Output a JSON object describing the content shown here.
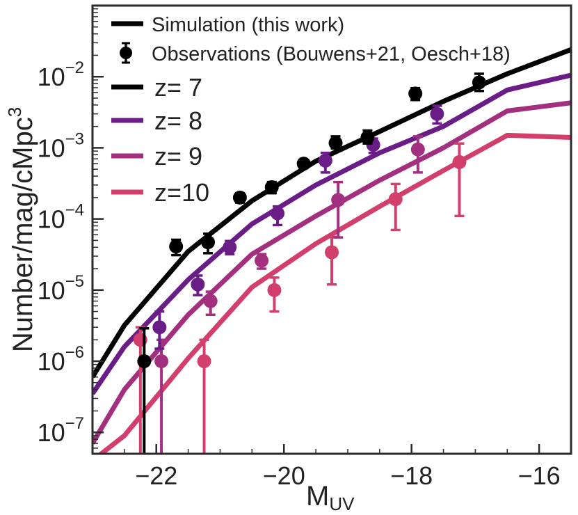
{
  "chart_data": {
    "type": "line",
    "xlabel_main": "M",
    "xlabel_sub": "UV",
    "ylabel_main": "Number/mag/cMpc",
    "ylabel_sup": "3",
    "x_scale": "linear",
    "y_scale": "log",
    "xlim": [
      -23.0,
      -15.5
    ],
    "ylim": [
      5e-08,
      0.1
    ],
    "x_ticks": [
      -22,
      -20,
      -18,
      -16
    ],
    "x_tick_labels": [
      "−22",
      "−20",
      "−18",
      "−16"
    ],
    "y_ticks": [
      {
        "value": 1e-07,
        "base": "10",
        "exp": "−7"
      },
      {
        "value": 1e-06,
        "base": "10",
        "exp": "−6"
      },
      {
        "value": 1e-05,
        "base": "10",
        "exp": "−5"
      },
      {
        "value": 0.0001,
        "base": "10",
        "exp": "−4"
      },
      {
        "value": 0.001,
        "base": "10",
        "exp": "−3"
      },
      {
        "value": 0.01,
        "base": "10",
        "exp": "−2"
      }
    ],
    "legend": {
      "position": "top-left",
      "simulation_label": "Simulation (this work)",
      "observations_label": "Observations (Bouwens+21, Oesch+18)",
      "series_labels": [
        "z= 7",
        "z= 8",
        "z= 9",
        "z=10"
      ]
    },
    "series": [
      {
        "name": "z= 7",
        "color": "#000000",
        "line": {
          "x": [
            -23.0,
            -22.5,
            -21.5,
            -20.5,
            -19.5,
            -18.5,
            -17.5,
            -16.5,
            -15.5
          ],
          "y": [
            6e-07,
            3.2e-06,
            3.5e-05,
            0.00018,
            0.00065,
            0.0017,
            0.0045,
            0.011,
            0.024
          ]
        },
        "points": [
          {
            "x": -22.19,
            "y": 1e-06,
            "lo": 4e-08,
            "hi": 2.9e-06
          },
          {
            "x": -21.69,
            "y": 4.1e-05,
            "lo": 3.1e-05,
            "hi": 5.1e-05
          },
          {
            "x": -21.19,
            "y": 4.7e-05,
            "lo": 3.3e-05,
            "hi": 6.2e-05
          },
          {
            "x": -20.69,
            "y": 0.0002,
            "lo": 0.00017,
            "hi": 0.00023
          },
          {
            "x": -20.19,
            "y": 0.00028,
            "lo": 0.00023,
            "hi": 0.00033
          },
          {
            "x": -19.69,
            "y": 0.0006,
            "lo": 0.00052,
            "hi": 0.00068
          },
          {
            "x": -19.19,
            "y": 0.00117,
            "lo": 0.00098,
            "hi": 0.00145
          },
          {
            "x": -18.69,
            "y": 0.0014,
            "lo": 0.00115,
            "hi": 0.00175
          },
          {
            "x": -17.94,
            "y": 0.0058,
            "lo": 0.0047,
            "hi": 0.0069
          },
          {
            "x": -16.94,
            "y": 0.0083,
            "lo": 0.0063,
            "hi": 0.011
          }
        ]
      },
      {
        "name": "z= 8",
        "color": "#6a1d86",
        "line": {
          "x": [
            -23.0,
            -22.5,
            -21.5,
            -20.5,
            -19.5,
            -18.5,
            -17.5,
            -16.5,
            -15.5
          ],
          "y": [
            3.5e-07,
            1.6e-06,
            1.4e-05,
            8.5e-05,
            0.0003,
            0.00085,
            0.002,
            0.0065,
            0.0105
          ]
        },
        "points": [
          {
            "x": -21.95,
            "y": 3e-06,
            "lo": 1.5e-06,
            "hi": 5e-06
          },
          {
            "x": -21.35,
            "y": 1.2e-05,
            "lo": 8.5e-06,
            "hi": 1.6e-05
          },
          {
            "x": -20.85,
            "y": 4e-05,
            "lo": 3.2e-05,
            "hi": 4.9e-05
          },
          {
            "x": -20.1,
            "y": 0.00012,
            "lo": 8.2e-05,
            "hi": 0.00015
          },
          {
            "x": -19.35,
            "y": 0.00066,
            "lo": 0.00045,
            "hi": 0.00085
          },
          {
            "x": -18.6,
            "y": 0.0011,
            "lo": 0.00085,
            "hi": 0.00135
          },
          {
            "x": -17.6,
            "y": 0.003,
            "lo": 0.0022,
            "hi": 0.0039
          }
        ]
      },
      {
        "name": "z= 9",
        "color": "#a3307f",
        "line": {
          "x": [
            -23.0,
            -22.5,
            -21.5,
            -20.5,
            -19.5,
            -18.5,
            -17.5,
            -16.5,
            -15.5
          ],
          "y": [
            7e-08,
            4e-07,
            4.5e-06,
            3.2e-05,
            0.00011,
            0.00035,
            0.001,
            0.0033,
            0.0043
          ]
        },
        "points": [
          {
            "x": -21.92,
            "y": 1e-06,
            "lo": 4e-08,
            "hi": 2e-06
          },
          {
            "x": -21.15,
            "y": 7e-06,
            "lo": 4.5e-06,
            "hi": 9.5e-06
          },
          {
            "x": -20.35,
            "y": 2.6e-05,
            "lo": 2e-05,
            "hi": 3.2e-05
          },
          {
            "x": -19.15,
            "y": 0.000185,
            "lo": 5.5e-05,
            "hi": 0.00033
          },
          {
            "x": -17.9,
            "y": 0.00095,
            "lo": 0.00045,
            "hi": 0.00145
          }
        ]
      },
      {
        "name": "z=10",
        "color": "#d23f6c",
        "line": {
          "x": [
            -23.0,
            -22.5,
            -21.5,
            -20.5,
            -19.5,
            -18.5,
            -17.5,
            -16.5,
            -15.5
          ],
          "y": [
            4e-08,
            9e-08,
            1.1e-06,
            1.1e-05,
            4.5e-05,
            0.00015,
            0.00048,
            0.0015,
            0.0014
          ]
        },
        "points": [
          {
            "x": -22.25,
            "y": 2e-06,
            "lo": 4e-08,
            "hi": 3e-06
          },
          {
            "x": -21.25,
            "y": 1e-06,
            "lo": 4e-08,
            "hi": 2e-06
          },
          {
            "x": -20.15,
            "y": 1e-05,
            "lo": 5e-06,
            "hi": 1.5e-05
          },
          {
            "x": -19.25,
            "y": 3.4e-05,
            "lo": 1.2e-05,
            "hi": 5.6e-05
          },
          {
            "x": -18.25,
            "y": 0.00019,
            "lo": 7e-05,
            "hi": 0.00031
          },
          {
            "x": -17.25,
            "y": 0.00063,
            "lo": 0.00011,
            "hi": 0.00115
          }
        ]
      }
    ]
  }
}
